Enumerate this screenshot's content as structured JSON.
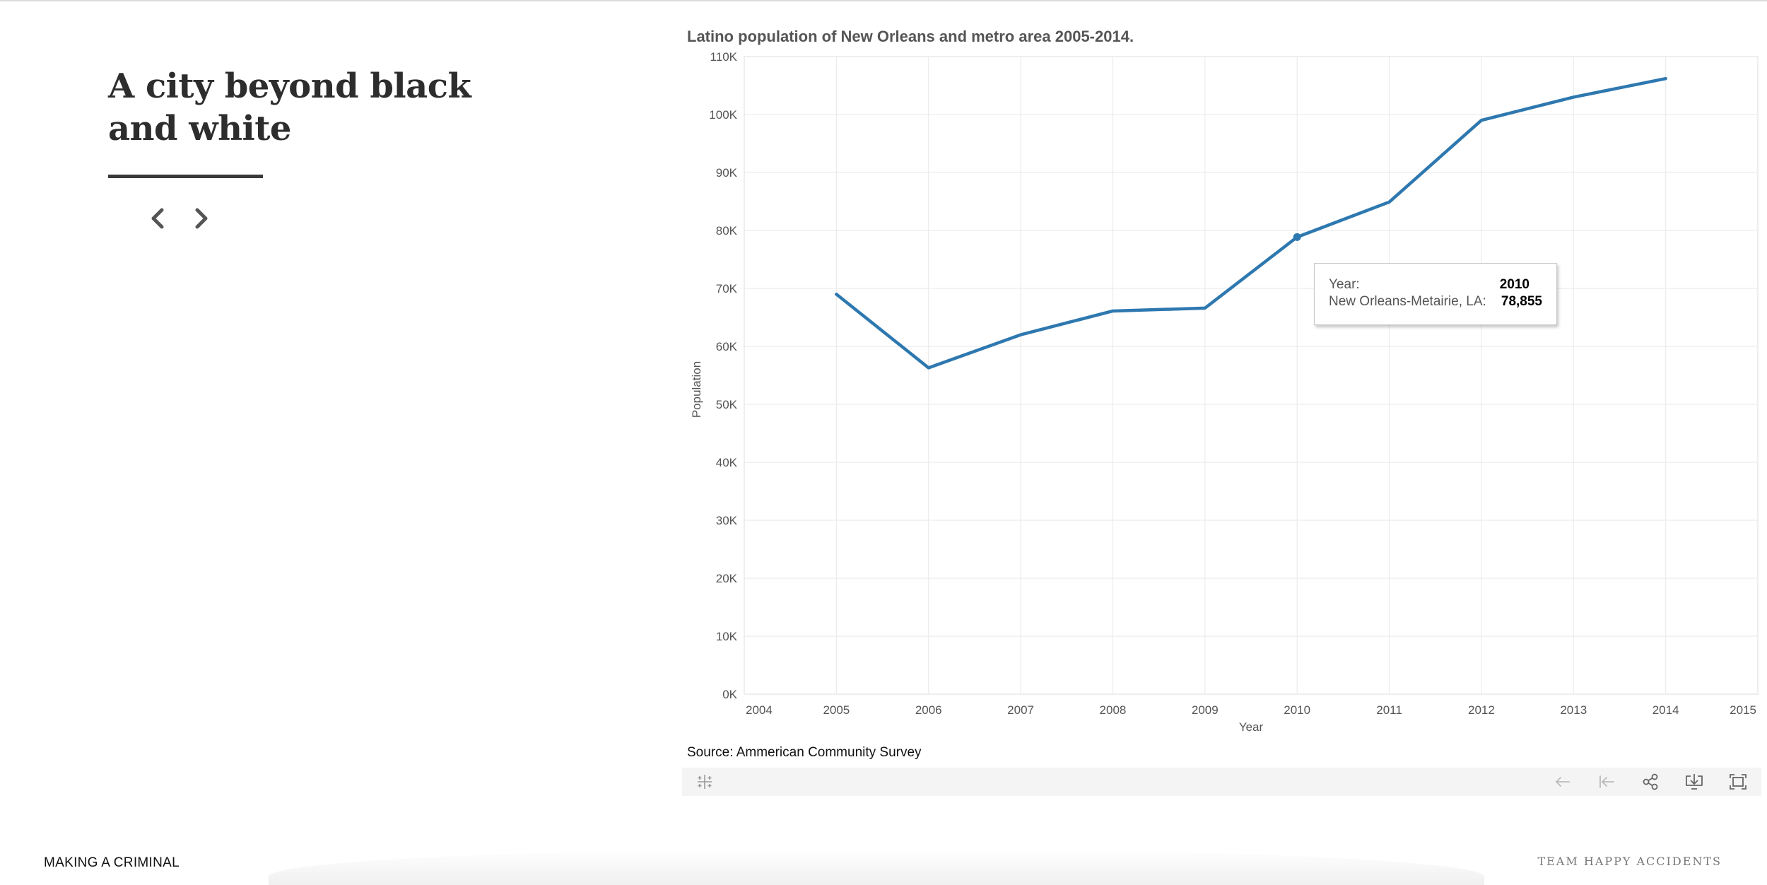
{
  "story": {
    "title": "A city beyond black and white"
  },
  "viz": {
    "title": "Latino population of New Orleans and metro area 2005-2014.",
    "source": "Source: Ammerican Community Survey",
    "tooltip": {
      "year_label": "Year:",
      "year_value": "2010",
      "series_label": "New Orleans-Metairie, LA:",
      "series_value": "78,855"
    },
    "line_color": "#2e78b0"
  },
  "chart_data": {
    "type": "line",
    "xlabel": "Year",
    "ylabel": "Population",
    "xlim": [
      2004,
      2015
    ],
    "ylim": [
      0,
      110000
    ],
    "x_ticks": [
      2004,
      2005,
      2006,
      2007,
      2008,
      2009,
      2010,
      2011,
      2012,
      2013,
      2014,
      2015
    ],
    "y_ticks": [
      "0K",
      "10K",
      "20K",
      "30K",
      "40K",
      "50K",
      "60K",
      "70K",
      "80K",
      "90K",
      "100K",
      "110K"
    ],
    "grid": true,
    "series": [
      {
        "x": [
          2005,
          2006,
          2007,
          2008,
          2009,
          2010,
          2011,
          2012,
          2013,
          2014
        ],
        "values": [
          69000,
          56300,
          62000,
          66100,
          66600,
          78855,
          84900,
          99000,
          103000,
          106200
        ]
      }
    ],
    "highlighted_point": {
      "x": 2010,
      "y": 78855
    }
  },
  "footer": {
    "left": "MAKING A CRIMINAL",
    "right": "TEAM HAPPY ACCIDENTS"
  }
}
